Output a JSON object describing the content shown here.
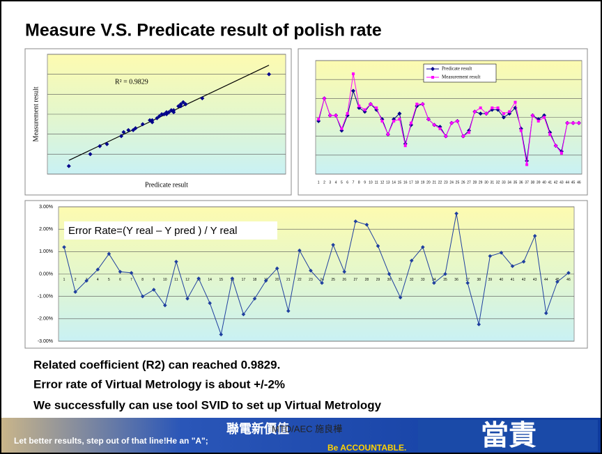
{
  "title": "Measure V.S. Predicate result of polish rate",
  "chart_data": [
    {
      "type": "scatter",
      "annotation": "R² = 0.9829",
      "x_label": "Predicate result",
      "y_label": "Measurement result",
      "x": [
        0.9,
        1.8,
        2.2,
        2.5,
        3.1,
        3.2,
        3.4,
        3.6,
        3.7,
        4.0,
        4.3,
        4.4,
        4.4,
        4.6,
        4.7,
        4.8,
        4.9,
        5.0,
        5.0,
        5.1,
        5.2,
        5.3,
        5.3,
        5.5,
        5.6,
        5.6,
        5.7,
        5.8,
        5.8,
        6.5,
        9.3
      ],
      "values": [
        0.4,
        1.0,
        1.4,
        1.5,
        1.9,
        2.1,
        2.2,
        2.2,
        2.3,
        2.5,
        2.7,
        2.6,
        2.7,
        2.8,
        2.9,
        3.0,
        3.0,
        3.0,
        3.1,
        3.1,
        3.2,
        3.1,
        3.2,
        3.4,
        3.4,
        3.5,
        3.6,
        3.5,
        3.5,
        3.8,
        5.0
      ],
      "color": "#00008b",
      "trendline": true,
      "xlim": [
        0,
        10
      ],
      "ylim": [
        0,
        6
      ],
      "yticks": [
        0,
        1,
        2,
        3,
        4,
        5,
        6
      ],
      "grid": true,
      "show_tick_labels": false
    },
    {
      "type": "line",
      "legend": "top",
      "categories": [
        "1",
        "2",
        "3",
        "4",
        "5",
        "6",
        "7",
        "8",
        "9",
        "10",
        "11",
        "12",
        "13",
        "14",
        "15",
        "16",
        "17",
        "18",
        "19",
        "20",
        "21",
        "22",
        "23",
        "24",
        "25",
        "26",
        "27",
        "28",
        "29",
        "30",
        "31",
        "32",
        "33",
        "34",
        "35",
        "36",
        "37",
        "38",
        "39",
        "40",
        "41",
        "42",
        "43",
        "44",
        "45",
        "46"
      ],
      "series": [
        {
          "name": "Predicate result",
          "color": "#00008b",
          "marker": "diamond",
          "values": [
            2.8,
            4.0,
            3.1,
            3.1,
            2.3,
            3.1,
            4.4,
            3.5,
            3.3,
            3.7,
            3.4,
            2.9,
            2.1,
            2.9,
            3.2,
            1.6,
            2.6,
            3.6,
            3.7,
            2.9,
            2.6,
            2.5,
            2.0,
            2.7,
            2.8,
            2.0,
            2.3,
            3.3,
            3.2,
            3.2,
            3.4,
            3.4,
            3.0,
            3.2,
            3.5,
            2.4,
            0.7,
            3.1,
            2.9,
            3.1,
            2.2,
            1.5,
            1.2,
            2.7,
            2.7,
            2.7
          ]
        },
        {
          "name": "Measurement result",
          "color": "#ff00ff",
          "marker": "square",
          "values": [
            2.9,
            4.0,
            3.1,
            3.1,
            2.4,
            3.2,
            5.3,
            3.6,
            3.4,
            3.7,
            3.5,
            2.8,
            2.1,
            2.8,
            2.9,
            1.5,
            2.7,
            3.7,
            3.7,
            2.9,
            2.6,
            2.4,
            2.0,
            2.7,
            2.8,
            2.0,
            2.2,
            3.3,
            3.5,
            3.2,
            3.5,
            3.5,
            3.2,
            3.3,
            3.8,
            2.3,
            0.5,
            3.1,
            2.8,
            3.0,
            2.1,
            1.5,
            1.1,
            2.7,
            2.7,
            2.7
          ]
        }
      ],
      "ylim": [
        0,
        6
      ],
      "yticks": [
        0,
        1,
        2,
        3,
        4,
        5,
        6
      ],
      "grid": true,
      "show_tick_labels": false
    },
    {
      "type": "line",
      "annotation": "Error Rate=(Y real – Y pred ) / Y real",
      "categories": [
        "1",
        "2",
        "3",
        "4",
        "5",
        "6",
        "7",
        "8",
        "9",
        "10",
        "11",
        "12",
        "13",
        "14",
        "15",
        "16",
        "17",
        "18",
        "19",
        "20",
        "21",
        "22",
        "23",
        "24",
        "25",
        "26",
        "27",
        "28",
        "29",
        "30",
        "31",
        "32",
        "33",
        "34",
        "35",
        "36",
        "37",
        "38",
        "39",
        "40",
        "41",
        "42",
        "43",
        "44",
        "45",
        "46"
      ],
      "series": [
        {
          "color": "#1f3f9f",
          "marker": "diamond",
          "values": [
            1.2,
            -0.8,
            -0.3,
            0.2,
            0.9,
            0.1,
            0.05,
            -1.0,
            -0.7,
            -1.4,
            0.55,
            -1.1,
            -0.2,
            -1.3,
            -2.7,
            -0.2,
            -1.8,
            -1.1,
            -0.3,
            0.25,
            -1.65,
            1.05,
            0.15,
            -0.4,
            1.3,
            0.1,
            2.35,
            2.2,
            1.25,
            0.0,
            -1.05,
            0.6,
            1.2,
            -0.4,
            0.0,
            2.7,
            -0.4,
            -2.25,
            0.8,
            0.95,
            0.35,
            0.55,
            1.7,
            -1.75,
            -0.35,
            0.05
          ]
        }
      ],
      "ylim": [
        -3,
        3
      ],
      "yticks": [
        {
          "value": -3,
          "label": "-3.00%"
        },
        {
          "value": -2,
          "label": "-2.00%"
        },
        {
          "value": -1,
          "label": "-1.00%"
        },
        {
          "value": 0,
          "label": "0.00%"
        },
        {
          "value": 1,
          "label": "1.00%"
        },
        {
          "value": 2,
          "label": "2.00%"
        },
        {
          "value": 3,
          "label": "3.00%"
        }
      ],
      "grid": true,
      "show_tick_labels": true
    }
  ],
  "notes": [
    "Related coefficient (R2) can reached 0.9829.",
    "Error rate of Virtual Metrology is about +/-2%",
    "We successfully can use tool SVID to set up Virtual Metrology"
  ],
  "footer": {
    "slogan": "聯電新價值",
    "author": "MTD/AEC 施良樺",
    "motto": "Let better results, step out of that line!He an \"A\";",
    "motto2": "Be ACCOUNTABLE.",
    "big": "當責"
  }
}
